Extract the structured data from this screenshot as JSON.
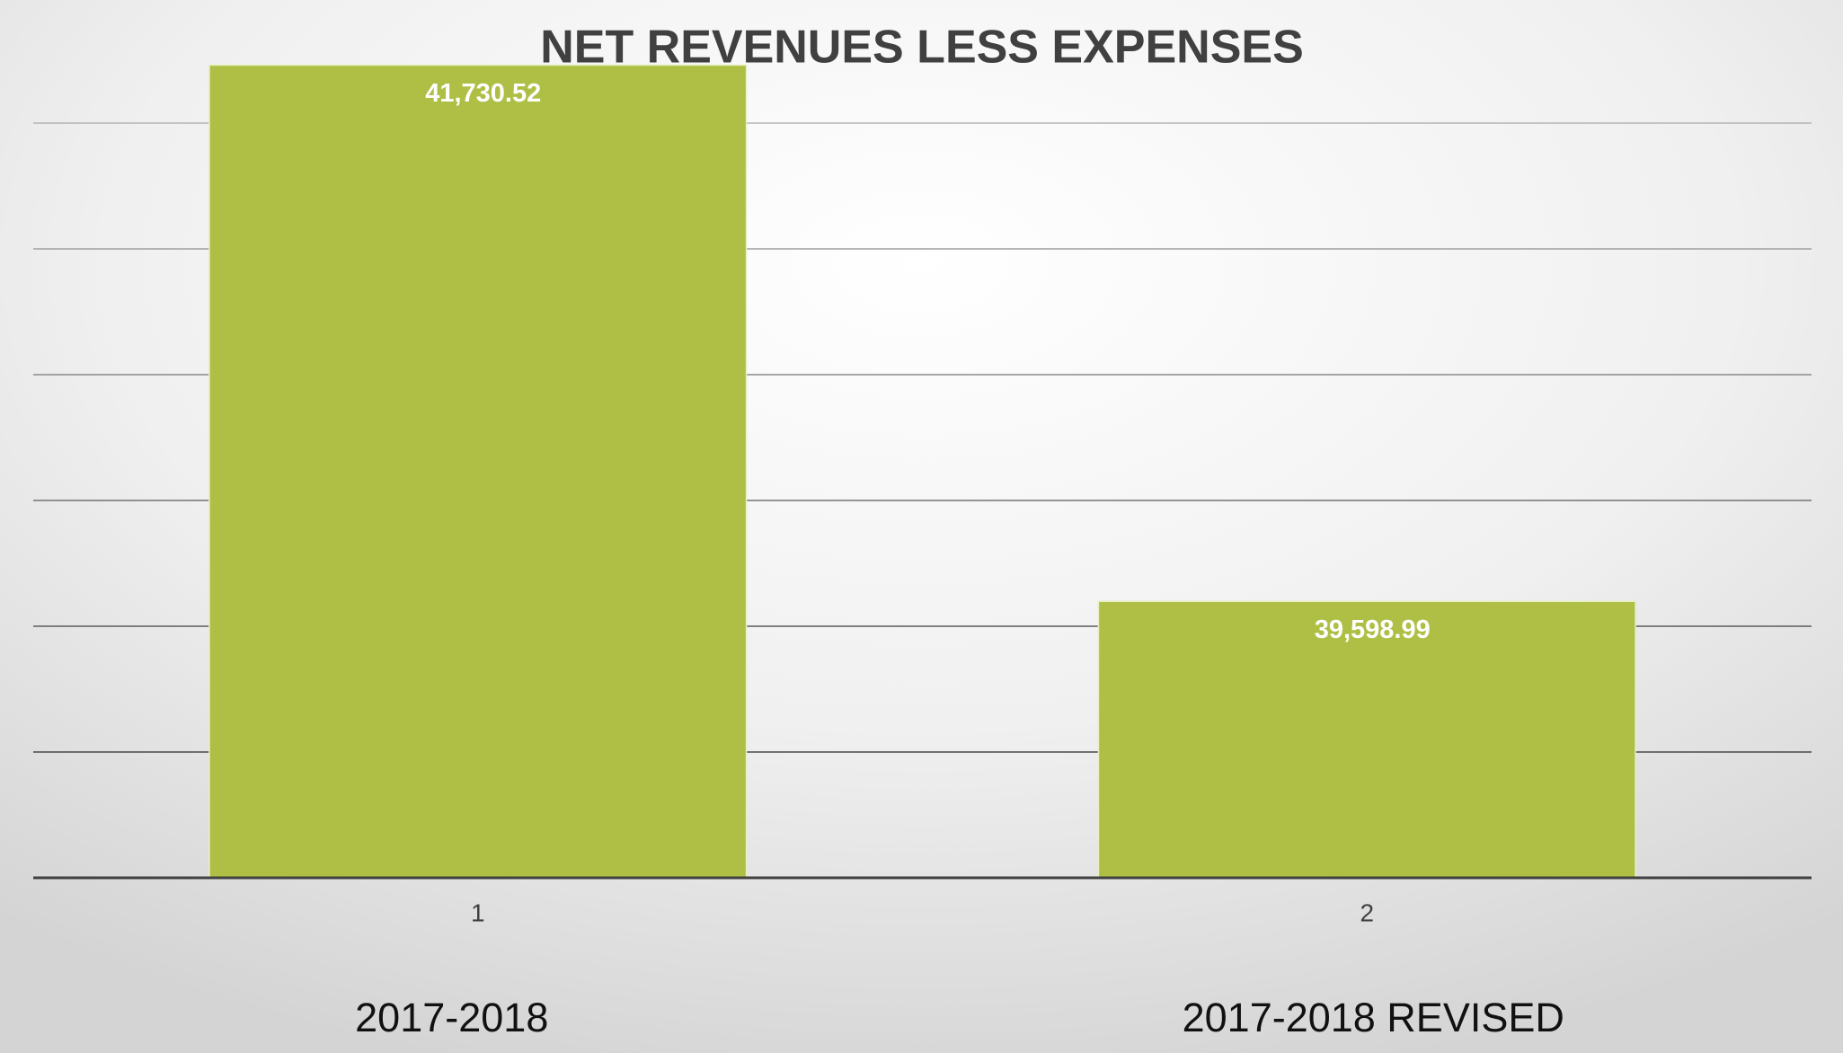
{
  "chart_data": {
    "type": "bar",
    "title": "NET REVENUES LESS EXPENSES",
    "categories": [
      "1",
      "2"
    ],
    "category_labels": [
      "2017-2018",
      "2017-2018 REVISED"
    ],
    "values": [
      41730.52,
      39598.99
    ],
    "value_labels": [
      "41,730.52",
      "39,598.99"
    ],
    "color": "#afbf45",
    "ylim": [
      38500,
      42000
    ],
    "yticks": [
      38500,
      39000,
      39500,
      40000,
      40500,
      41000,
      41500
    ],
    "grid": true
  }
}
